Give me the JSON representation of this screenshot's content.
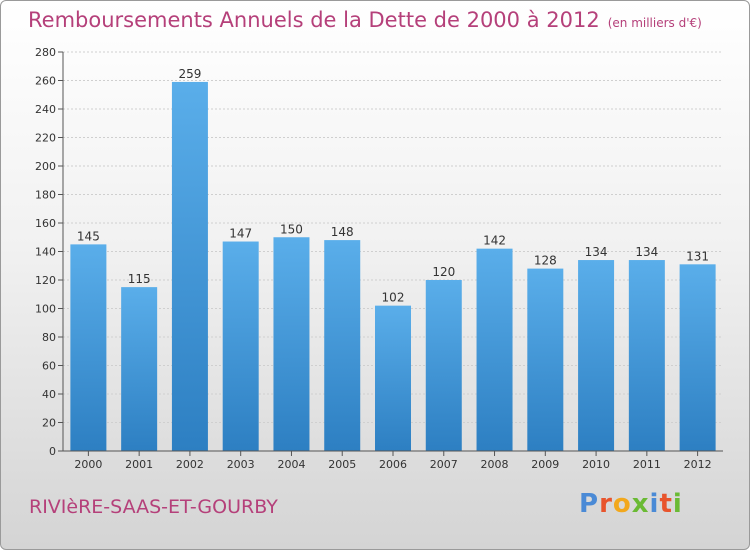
{
  "header": {
    "title": "Remboursements Annuels de la Dette de 2000 à 2012",
    "subtitle": "(en milliers d'€)"
  },
  "footer": {
    "commune": "RIVIèRE-SAAS-ET-GOURBY",
    "logo_letters": [
      "P",
      "r",
      "o",
      "x",
      "i",
      "t",
      "i"
    ]
  },
  "colors": {
    "title": "#b5407a",
    "bar_light": "#5aaeea",
    "bar_dark": "#2d7fc2",
    "logo": [
      "#4a8ad6",
      "#e8542c",
      "#f2a81d",
      "#6aba34",
      "#4a8ad6",
      "#e8542c",
      "#6aba34"
    ]
  },
  "chart_data": {
    "type": "bar",
    "title": "Remboursements Annuels de la Dette de 2000 à 2012",
    "subtitle": "(en milliers d'€)",
    "categories": [
      "2000",
      "2001",
      "2002",
      "2003",
      "2004",
      "2005",
      "2006",
      "2007",
      "2008",
      "2009",
      "2010",
      "2011",
      "2012"
    ],
    "values": [
      145,
      115,
      259,
      147,
      150,
      148,
      102,
      120,
      142,
      128,
      134,
      134,
      131
    ],
    "ylim": [
      0,
      280
    ],
    "yticks": [
      0,
      20,
      40,
      60,
      80,
      100,
      120,
      140,
      160,
      180,
      200,
      220,
      240,
      260,
      280
    ],
    "grid": true,
    "xlabel": "",
    "ylabel": ""
  }
}
